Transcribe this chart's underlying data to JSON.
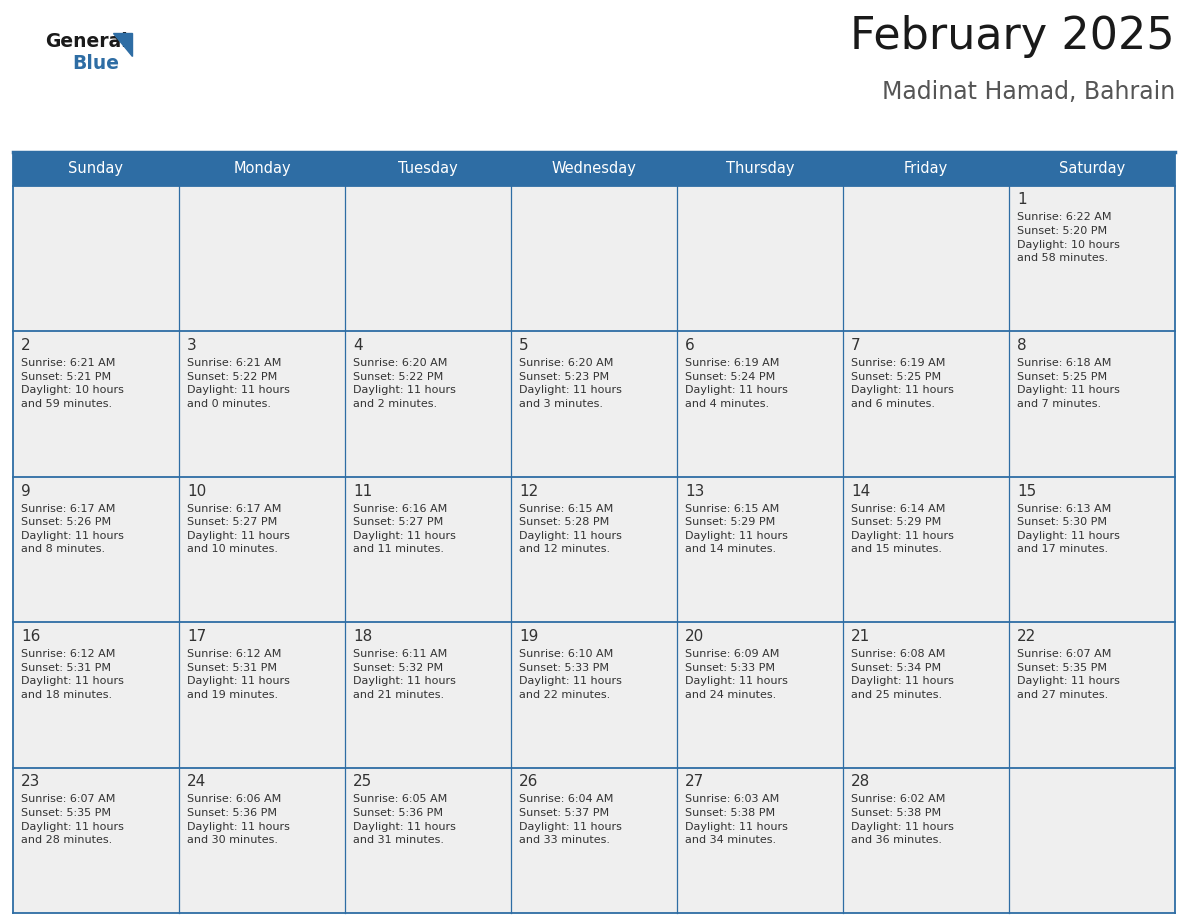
{
  "title": "February 2025",
  "subtitle": "Madinat Hamad, Bahrain",
  "header_bg": "#2E6DA4",
  "header_text": "#FFFFFF",
  "cell_bg": "#EFEFEF",
  "grid_line_color": "#2E6DA4",
  "day_number_color": "#333333",
  "info_text_color": "#333333",
  "days_of_week": [
    "Sunday",
    "Monday",
    "Tuesday",
    "Wednesday",
    "Thursday",
    "Friday",
    "Saturday"
  ],
  "calendar_data": [
    [
      null,
      null,
      null,
      null,
      null,
      null,
      1
    ],
    [
      2,
      3,
      4,
      5,
      6,
      7,
      8
    ],
    [
      9,
      10,
      11,
      12,
      13,
      14,
      15
    ],
    [
      16,
      17,
      18,
      19,
      20,
      21,
      22
    ],
    [
      23,
      24,
      25,
      26,
      27,
      28,
      null
    ]
  ],
  "sunrise_data": {
    "1": "Sunrise: 6:22 AM\nSunset: 5:20 PM\nDaylight: 10 hours\nand 58 minutes.",
    "2": "Sunrise: 6:21 AM\nSunset: 5:21 PM\nDaylight: 10 hours\nand 59 minutes.",
    "3": "Sunrise: 6:21 AM\nSunset: 5:22 PM\nDaylight: 11 hours\nand 0 minutes.",
    "4": "Sunrise: 6:20 AM\nSunset: 5:22 PM\nDaylight: 11 hours\nand 2 minutes.",
    "5": "Sunrise: 6:20 AM\nSunset: 5:23 PM\nDaylight: 11 hours\nand 3 minutes.",
    "6": "Sunrise: 6:19 AM\nSunset: 5:24 PM\nDaylight: 11 hours\nand 4 minutes.",
    "7": "Sunrise: 6:19 AM\nSunset: 5:25 PM\nDaylight: 11 hours\nand 6 minutes.",
    "8": "Sunrise: 6:18 AM\nSunset: 5:25 PM\nDaylight: 11 hours\nand 7 minutes.",
    "9": "Sunrise: 6:17 AM\nSunset: 5:26 PM\nDaylight: 11 hours\nand 8 minutes.",
    "10": "Sunrise: 6:17 AM\nSunset: 5:27 PM\nDaylight: 11 hours\nand 10 minutes.",
    "11": "Sunrise: 6:16 AM\nSunset: 5:27 PM\nDaylight: 11 hours\nand 11 minutes.",
    "12": "Sunrise: 6:15 AM\nSunset: 5:28 PM\nDaylight: 11 hours\nand 12 minutes.",
    "13": "Sunrise: 6:15 AM\nSunset: 5:29 PM\nDaylight: 11 hours\nand 14 minutes.",
    "14": "Sunrise: 6:14 AM\nSunset: 5:29 PM\nDaylight: 11 hours\nand 15 minutes.",
    "15": "Sunrise: 6:13 AM\nSunset: 5:30 PM\nDaylight: 11 hours\nand 17 minutes.",
    "16": "Sunrise: 6:12 AM\nSunset: 5:31 PM\nDaylight: 11 hours\nand 18 minutes.",
    "17": "Sunrise: 6:12 AM\nSunset: 5:31 PM\nDaylight: 11 hours\nand 19 minutes.",
    "18": "Sunrise: 6:11 AM\nSunset: 5:32 PM\nDaylight: 11 hours\nand 21 minutes.",
    "19": "Sunrise: 6:10 AM\nSunset: 5:33 PM\nDaylight: 11 hours\nand 22 minutes.",
    "20": "Sunrise: 6:09 AM\nSunset: 5:33 PM\nDaylight: 11 hours\nand 24 minutes.",
    "21": "Sunrise: 6:08 AM\nSunset: 5:34 PM\nDaylight: 11 hours\nand 25 minutes.",
    "22": "Sunrise: 6:07 AM\nSunset: 5:35 PM\nDaylight: 11 hours\nand 27 minutes.",
    "23": "Sunrise: 6:07 AM\nSunset: 5:35 PM\nDaylight: 11 hours\nand 28 minutes.",
    "24": "Sunrise: 6:06 AM\nSunset: 5:36 PM\nDaylight: 11 hours\nand 30 minutes.",
    "25": "Sunrise: 6:05 AM\nSunset: 5:36 PM\nDaylight: 11 hours\nand 31 minutes.",
    "26": "Sunrise: 6:04 AM\nSunset: 5:37 PM\nDaylight: 11 hours\nand 33 minutes.",
    "27": "Sunrise: 6:03 AM\nSunset: 5:38 PM\nDaylight: 11 hours\nand 34 minutes.",
    "28": "Sunrise: 6:02 AM\nSunset: 5:38 PM\nDaylight: 11 hours\nand 36 minutes."
  },
  "fig_width": 11.88,
  "fig_height": 9.18,
  "logo_general_color": "#1a1a1a",
  "logo_blue_color": "#2E6DA4",
  "title_color": "#1a1a1a",
  "subtitle_color": "#555555"
}
